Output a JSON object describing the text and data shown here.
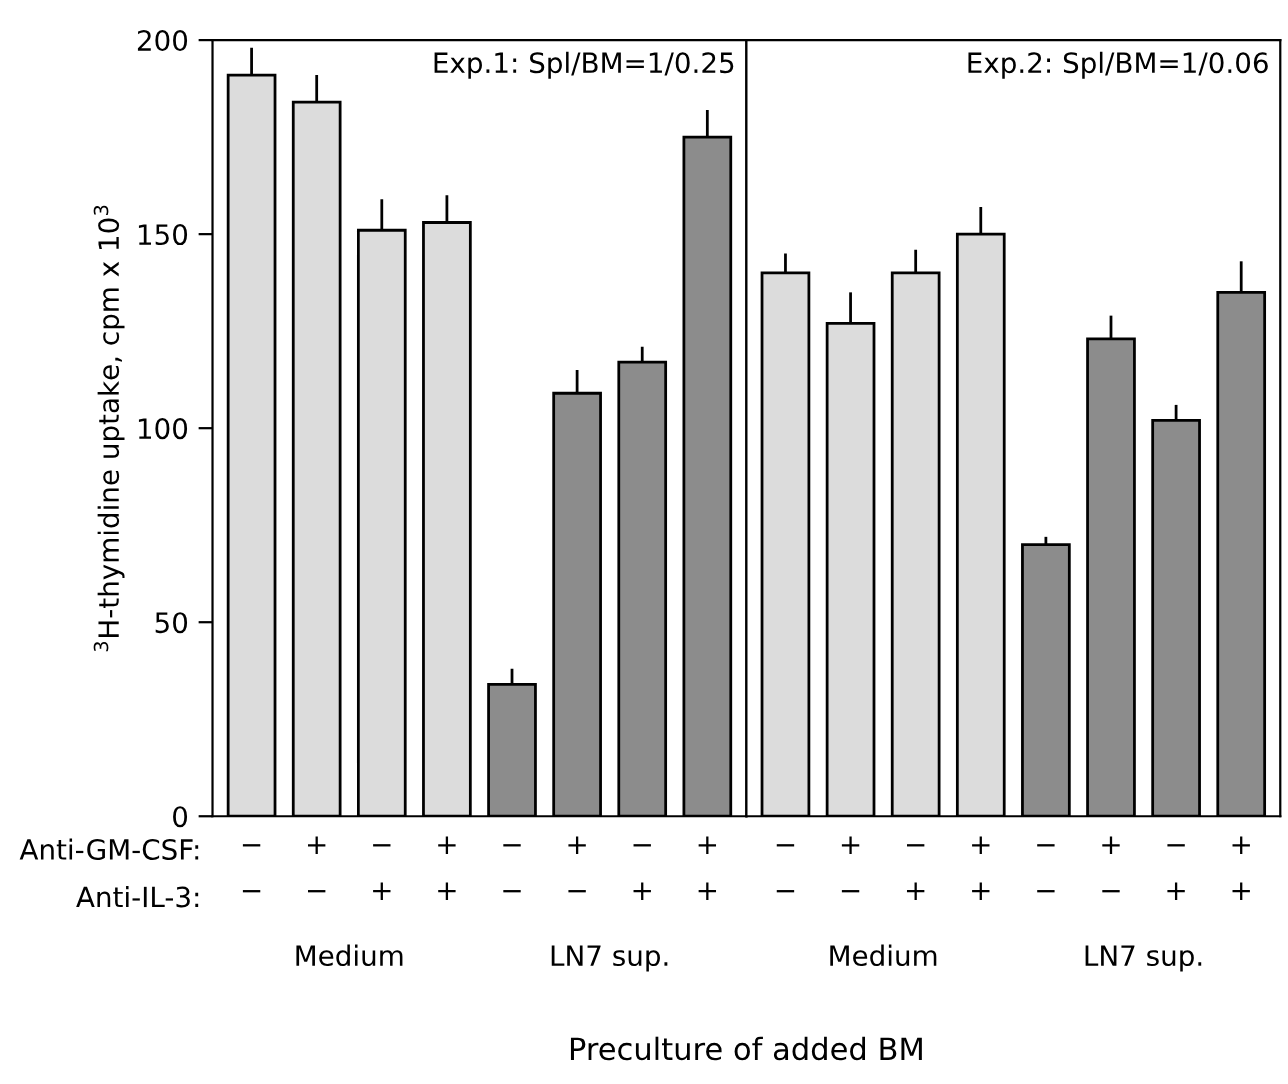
{
  "chart_data": [
    {
      "type": "bar",
      "title": "Exp.1: Spl/BM=1/0.25",
      "ylabel": "$^{3}$H-thymidine uptake, cpm x 10$^{3}$",
      "xlabel": "Preculture of added BM",
      "categories": [
        "−\n−",
        "+\n−",
        "−\n+",
        "+\n+",
        "−\n−",
        "+\n−",
        "−\n+",
        "+\n+"
      ],
      "values": [
        191,
        184,
        151,
        153,
        34,
        109,
        117,
        175
      ],
      "errors": [
        7,
        7,
        8,
        7,
        4,
        6,
        4,
        7
      ],
      "colors": [
        "#dcdcdc",
        "#dcdcdc",
        "#dcdcdc",
        "#dcdcdc",
        "#8c8c8c",
        "#8c8c8c",
        "#8c8c8c",
        "#8c8c8c"
      ],
      "annotations": [
        "Anti-GM-CSF:",
        "Anti-IL-3:",
        "Medium",
        "LN7 sup."
      ],
      "ylim": [
        0,
        200
      ],
      "yticks": [
        0,
        50,
        100,
        150,
        200
      ],
      "grid": false,
      "legend": false
    },
    {
      "type": "bar",
      "title": "Exp.2: Spl/BM=1/0.06",
      "categories": [
        "−\n−",
        "+\n−",
        "−\n+",
        "+\n+",
        "−\n−",
        "+\n−",
        "−\n+",
        "+\n+"
      ],
      "values": [
        140,
        127,
        140,
        150,
        70,
        123,
        102,
        135
      ],
      "errors": [
        5,
        8,
        6,
        7,
        2,
        6,
        4,
        8
      ],
      "colors": [
        "#dcdcdc",
        "#dcdcdc",
        "#dcdcdc",
        "#dcdcdc",
        "#8c8c8c",
        "#8c8c8c",
        "#8c8c8c",
        "#8c8c8c"
      ],
      "annotations": [
        "Medium",
        "LN7 sup."
      ],
      "ylim": [
        0,
        200
      ],
      "yticks": [
        0,
        50,
        100,
        150,
        200
      ],
      "tick_labels": "x",
      "grid": false,
      "legend": false
    }
  ]
}
